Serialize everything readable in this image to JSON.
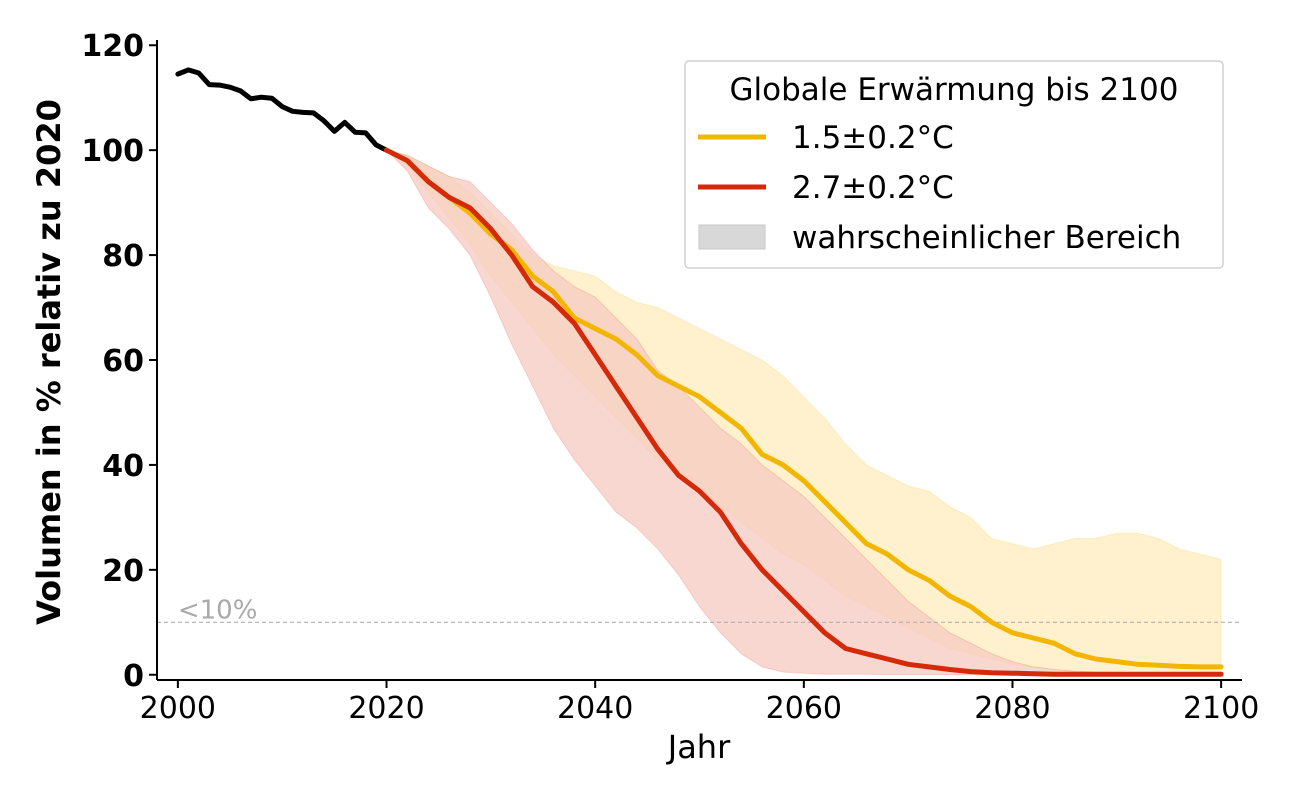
{
  "chart_data": {
    "type": "line",
    "title": "",
    "xlabel": "Jahr",
    "ylabel": "Volumen in % relativ zu 2020",
    "xlim": [
      1998,
      2102
    ],
    "ylim": [
      -1,
      121
    ],
    "x_ticks": [
      2000,
      2020,
      2040,
      2060,
      2080,
      2100
    ],
    "y_ticks": [
      0,
      20,
      40,
      60,
      80,
      100,
      120
    ],
    "grid": false,
    "threshold": {
      "y": 10,
      "label": "<10%",
      "color": "#b0b0b0"
    },
    "legend": {
      "title": "Globale Erwärmung bis 2100",
      "placement": "top-right",
      "entries": [
        {
          "label": "1.5±0.2°C",
          "color": "#f2b600",
          "kind": "line"
        },
        {
          "label": "2.7±0.2°C",
          "color": "#d42a09",
          "kind": "line"
        },
        {
          "label": "wahrscheinlicher Bereich",
          "color": "#d8d8d8",
          "kind": "patch"
        }
      ]
    },
    "series": [
      {
        "color": "#000000",
        "x": [
          2000,
          2001,
          2002,
          2003,
          2004,
          2005,
          2006,
          2007,
          2008,
          2009,
          2010,
          2011,
          2012,
          2013,
          2014,
          2015,
          2016,
          2017,
          2018,
          2019,
          2020
        ],
        "values": [
          114.5,
          115.3,
          114.7,
          112.5,
          112.4,
          112.0,
          111.3,
          109.8,
          110.1,
          109.9,
          108.3,
          107.4,
          107.2,
          107.1,
          105.6,
          103.6,
          105.3,
          103.4,
          103.3,
          101.0,
          100.0
        ]
      },
      {
        "name": "1.5±0.2°C",
        "color": "#f2b600",
        "band_color": "#fff0c8",
        "x": [
          2020,
          2022,
          2024,
          2026,
          2028,
          2030,
          2032,
          2034,
          2036,
          2038,
          2040,
          2042,
          2044,
          2046,
          2048,
          2050,
          2052,
          2054,
          2056,
          2058,
          2060,
          2062,
          2064,
          2066,
          2068,
          2070,
          2072,
          2074,
          2076,
          2078,
          2080,
          2082,
          2084,
          2086,
          2088,
          2090,
          2092,
          2094,
          2096,
          2098,
          2100
        ],
        "values": [
          100,
          98,
          94,
          91,
          88,
          84,
          81,
          76,
          73,
          68,
          66,
          64,
          61,
          57,
          55,
          53,
          50,
          47,
          42,
          40,
          37,
          33,
          29,
          25,
          23,
          20,
          18,
          15,
          13,
          10,
          8,
          7,
          6,
          4,
          3,
          2.5,
          2,
          1.8,
          1.6,
          1.5,
          1.5
        ],
        "low": [
          100,
          97,
          92,
          87,
          82,
          76,
          71,
          66,
          61,
          57,
          53,
          49,
          45,
          41,
          38,
          35,
          32,
          29,
          26,
          23,
          21,
          18,
          15,
          13,
          11,
          9,
          7,
          5,
          4,
          3,
          2,
          1.5,
          1,
          0.5,
          0.3,
          0.2,
          0.1,
          0.1,
          0,
          0,
          0
        ],
        "high": [
          100,
          99,
          97,
          95,
          92,
          88,
          84,
          80,
          78,
          77,
          76,
          73,
          71,
          70,
          68,
          66,
          64,
          62,
          60,
          57,
          53,
          49,
          44,
          40,
          38,
          36,
          35,
          32,
          30,
          26,
          25,
          24,
          25,
          26,
          26,
          27,
          27,
          26,
          24,
          23,
          22
        ]
      },
      {
        "name": "2.7±0.2°C",
        "color": "#d42a09",
        "band_color": "#f5cac1",
        "x": [
          2020,
          2022,
          2024,
          2026,
          2028,
          2030,
          2032,
          2034,
          2036,
          2038,
          2040,
          2042,
          2044,
          2046,
          2048,
          2050,
          2052,
          2054,
          2056,
          2058,
          2060,
          2062,
          2064,
          2066,
          2068,
          2070,
          2072,
          2074,
          2076,
          2078,
          2080,
          2082,
          2084,
          2086,
          2088,
          2090,
          2092,
          2094,
          2096,
          2098,
          2100
        ],
        "values": [
          100,
          98,
          94,
          91,
          89,
          85,
          80,
          74,
          71,
          67,
          61,
          55,
          49,
          43,
          38,
          35,
          31,
          25,
          20,
          16,
          12,
          8,
          5,
          4,
          3,
          2,
          1.5,
          1,
          0.6,
          0.4,
          0.3,
          0.2,
          0.1,
          0.1,
          0.1,
          0.1,
          0.1,
          0.1,
          0.1,
          0.1,
          0.1
        ],
        "low": [
          100,
          96,
          89,
          85,
          80,
          72,
          63,
          55,
          47,
          41,
          36,
          31,
          28,
          24,
          19,
          13,
          8,
          4,
          1.5,
          0.5,
          0.3,
          0.1,
          0.1,
          0.1,
          0,
          0,
          0,
          0,
          0,
          0,
          0,
          0,
          0,
          0,
          0,
          0,
          0,
          0,
          0,
          0,
          0
        ],
        "high": [
          100,
          99,
          97,
          95,
          94,
          90,
          86,
          81,
          77,
          74,
          72,
          68,
          64,
          58,
          55,
          51,
          47,
          44,
          40,
          37,
          34,
          30,
          26,
          22,
          18,
          14,
          11,
          8,
          6,
          4,
          2.5,
          1.5,
          1,
          0.7,
          0.5,
          0.4,
          0.3,
          0.2,
          0.2,
          0.2,
          0.2
        ]
      }
    ]
  }
}
